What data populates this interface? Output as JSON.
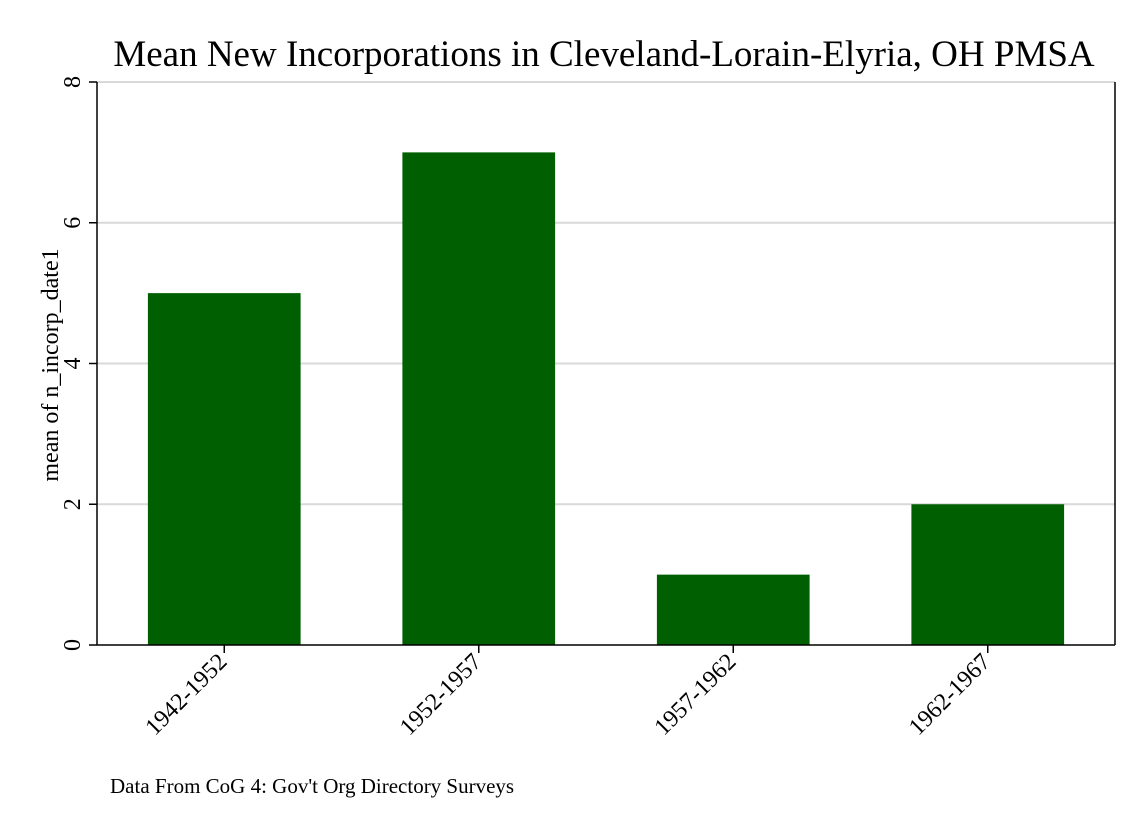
{
  "chart_data": {
    "type": "bar",
    "title": "Mean New Incorporations in Cleveland-Lorain-Elyria, OH PMSA",
    "xlabel": "",
    "ylabel": "mean of n_incorp_date1",
    "categories": [
      "1942-1952",
      "1952-1957",
      "1957-1962",
      "1962-1967"
    ],
    "values": [
      5,
      7,
      1,
      2
    ],
    "ylim": [
      0,
      8
    ],
    "yticks": [
      0,
      2,
      4,
      6,
      8
    ],
    "grid": true,
    "legend": "none",
    "bar_color": "#005f00",
    "grid_color": "#d9d9d9",
    "note": "Data From CoG 4: Gov't Org Directory Surveys"
  }
}
